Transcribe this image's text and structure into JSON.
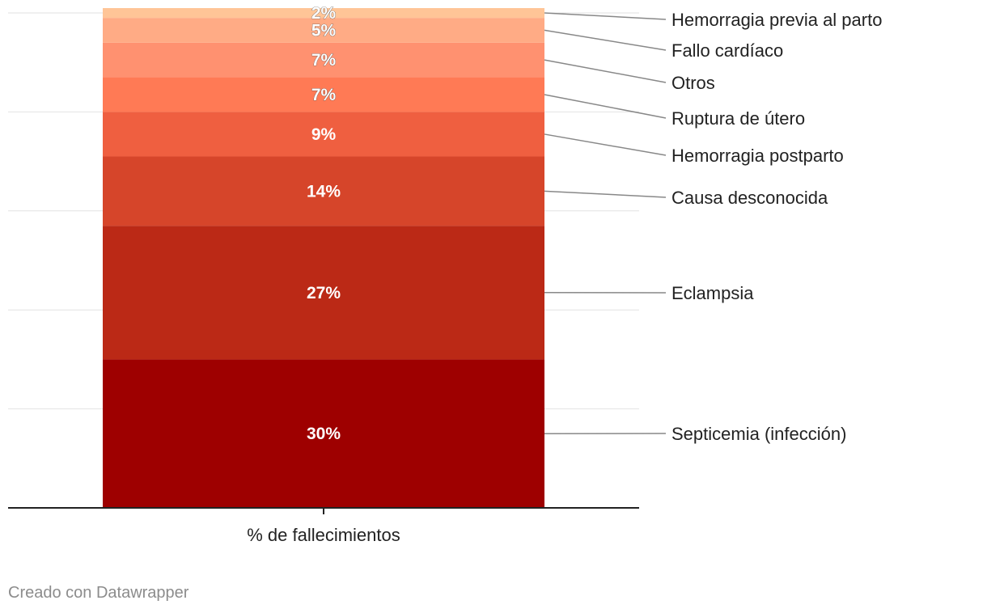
{
  "chart_data": {
    "type": "bar",
    "stacked": true,
    "categories": [
      "% de fallecimientos"
    ],
    "series": [
      {
        "name": "Septicemia (infección)",
        "values": [
          30
        ],
        "label": "30%",
        "color": "#9e0000"
      },
      {
        "name": "Eclampsia",
        "values": [
          27
        ],
        "label": "27%",
        "color": "#bb2916"
      },
      {
        "name": "Causa desconocida",
        "values": [
          14
        ],
        "label": "14%",
        "color": "#d6452a"
      },
      {
        "name": "Hemorragia postparto",
        "values": [
          9
        ],
        "label": "9%",
        "color": "#ef5f40"
      },
      {
        "name": "Ruptura de útero",
        "values": [
          7
        ],
        "label": "7%",
        "color": "#ff7a55"
      },
      {
        "name": "Otros",
        "values": [
          7
        ],
        "label": "7%",
        "color": "#ff9170"
      },
      {
        "name": "Fallo cardíaco",
        "values": [
          5
        ],
        "label": "5%",
        "color": "#ffab85"
      },
      {
        "name": "Hemorragia previa al parto",
        "values": [
          2
        ],
        "label": "2%",
        "color": "#ffc597"
      }
    ],
    "ylim": [
      0,
      100
    ],
    "grid": true,
    "legend": "right, labels connected to segments"
  },
  "footer": {
    "credit": "Creado con Datawrapper"
  }
}
